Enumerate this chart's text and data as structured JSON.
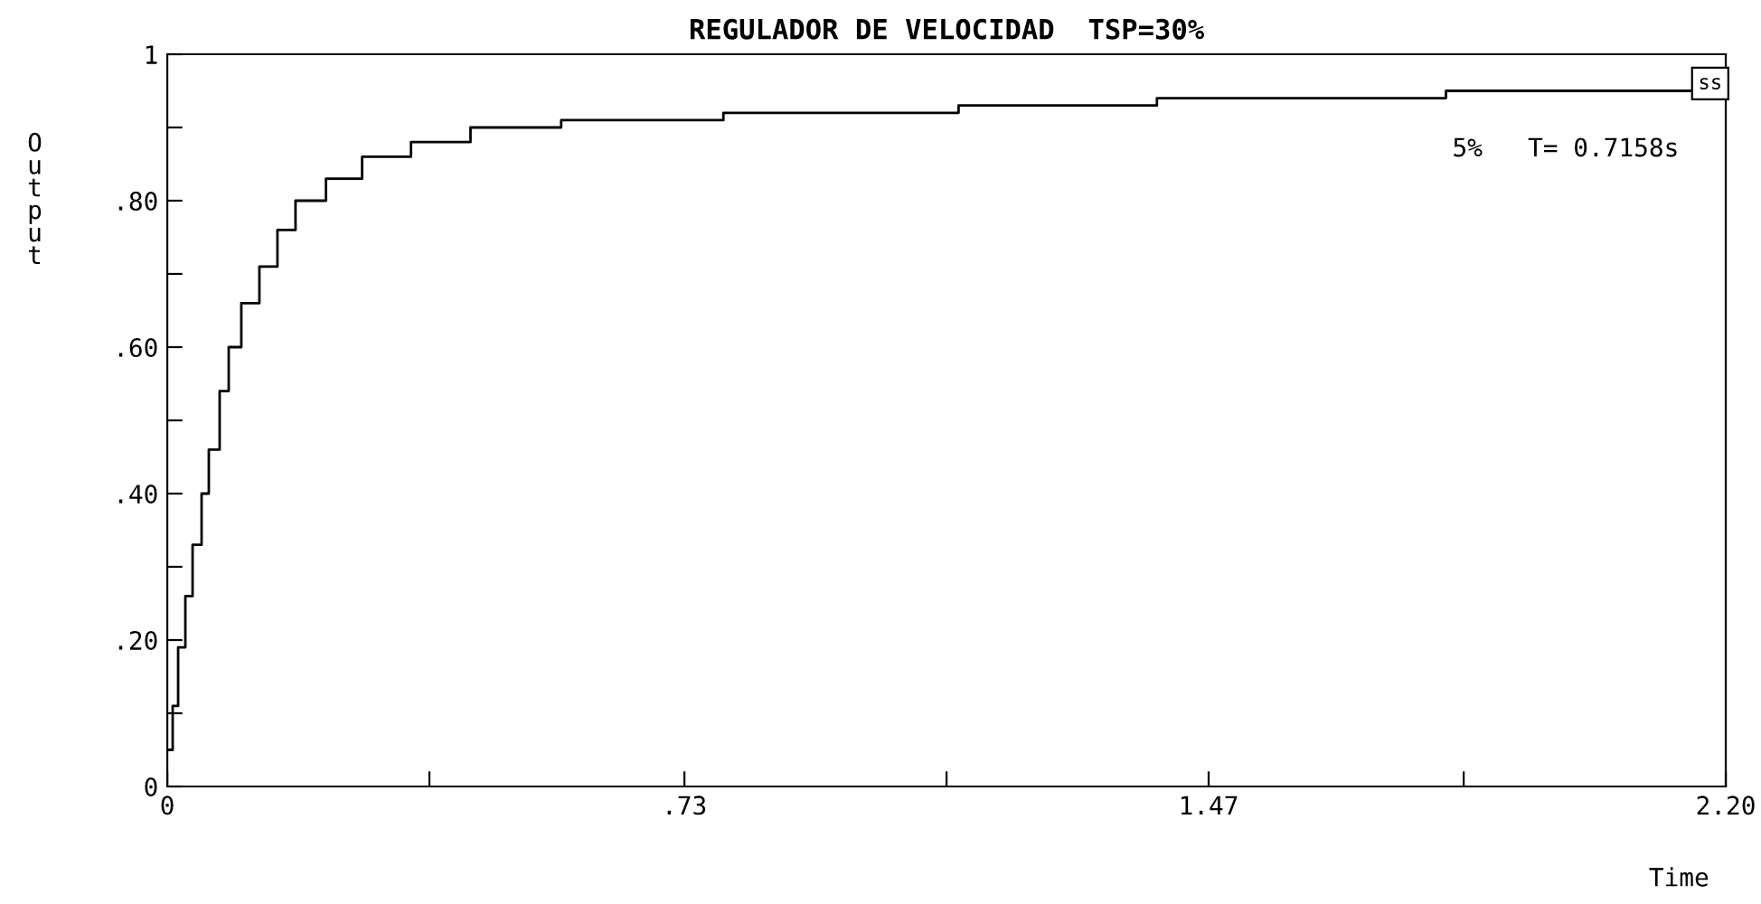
{
  "chart_data": {
    "type": "step",
    "title": "REGULADOR DE VELOCIDAD  TSP=30%",
    "xlabel": "Time",
    "ylabel": "Output",
    "x": [
      0,
      0.0076,
      0.0153,
      0.0255,
      0.0357,
      0.0484,
      0.0586,
      0.0739,
      0.0867,
      0.1045,
      0.13,
      0.1555,
      0.181,
      0.224,
      0.275,
      0.344,
      0.428,
      0.556,
      0.785,
      1.117,
      1.397,
      1.805,
      2.2
    ],
    "series": [
      {
        "color": "#000000",
        "values": [
          0.05,
          0.11,
          0.19,
          0.26,
          0.33,
          0.4,
          0.46,
          0.54,
          0.6,
          0.66,
          0.71,
          0.76,
          0.8,
          0.83,
          0.86,
          0.88,
          0.9,
          0.91,
          0.92,
          0.93,
          0.94,
          0.95,
          0.955
        ]
      }
    ],
    "xlim": [
      0,
      2.2
    ],
    "ylim": [
      0,
      1
    ],
    "xticks": [
      0,
      {
        "value": 0.37,
        "label": null
      },
      {
        "value": 0.73,
        "label": ".73"
      },
      {
        "value": 1.1,
        "label": null
      },
      1.47,
      {
        "value": 1.83,
        "label": null
      },
      {
        "value": 2.2,
        "label": "2.20"
      }
    ],
    "yticks": [
      0,
      {
        "value": 0.1,
        "label": null
      },
      {
        "value": 0.2,
        "label": ".20"
      },
      {
        "value": 0.3,
        "label": null
      },
      {
        "value": 0.4,
        "label": ".40"
      },
      {
        "value": 0.5,
        "label": null
      },
      {
        "value": 0.6,
        "label": ".60"
      },
      {
        "value": 0.7,
        "label": null
      },
      {
        "value": 0.8,
        "label": ".80"
      },
      {
        "value": 0.9,
        "label": null
      },
      1
    ],
    "annotations": [
      "5%   T= 0.7158s",
      "ss"
    ],
    "grid": false,
    "marker": "none",
    "line_style": "solid"
  }
}
